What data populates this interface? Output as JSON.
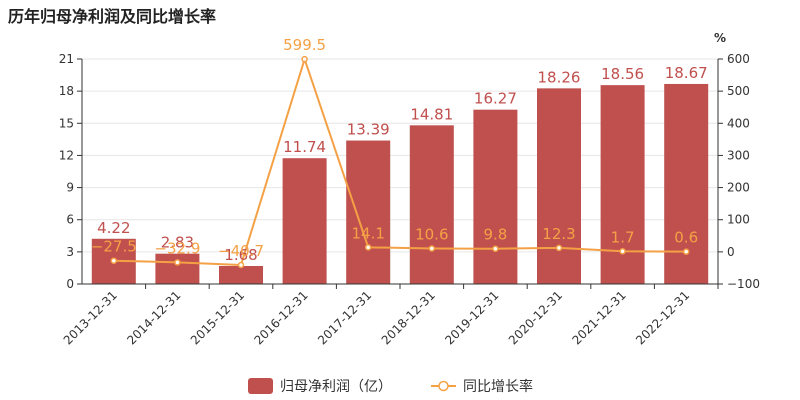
{
  "page": {
    "title": "历年归母净利润及同比增长率"
  },
  "chart_data": {
    "type": "bar",
    "categories": [
      "2013-12-31",
      "2014-12-31",
      "2015-12-31",
      "2016-12-31",
      "2017-12-31",
      "2018-12-31",
      "2019-12-31",
      "2020-12-31",
      "2021-12-31",
      "2022-12-31"
    ],
    "series": [
      {
        "name": "归母净利润（亿）",
        "type": "bar",
        "axis": "left",
        "color": "#c0504d",
        "values": [
          4.22,
          2.83,
          1.68,
          11.74,
          13.39,
          14.81,
          16.27,
          18.26,
          18.56,
          18.67
        ],
        "labels": [
          "4.22",
          "2.83",
          "1.68",
          "11.74",
          "13.39",
          "14.81",
          "16.27",
          "18.26",
          "18.56",
          "18.67"
        ]
      },
      {
        "name": "同比增长率",
        "type": "line",
        "axis": "right",
        "color": "#f4a146",
        "values": [
          -27.5,
          -32.9,
          -40.7,
          599.5,
          14.1,
          10.6,
          9.8,
          12.3,
          1.7,
          0.6
        ],
        "labels": [
          "-27.5",
          "-32.9",
          "-40.7",
          "599.5",
          "14.1",
          "10.6",
          "9.8",
          "12.3",
          "1.7",
          "0.6"
        ]
      }
    ],
    "y_left": {
      "min": 0,
      "max": 21,
      "ticks": [
        0,
        3,
        6,
        9,
        12,
        15,
        18,
        21
      ]
    },
    "y_right": {
      "min": -100,
      "max": 600,
      "ticks": [
        -100,
        0,
        100,
        200,
        300,
        400,
        500,
        600
      ],
      "unit_label": "%"
    },
    "legend_position": "bottom-center",
    "grid": "horizontal"
  }
}
